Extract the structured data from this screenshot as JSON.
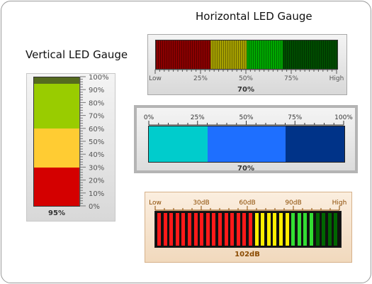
{
  "horizontal_title": "Horizontal LED Gauge",
  "vertical_title": "Vertical LED Gauge",
  "vertical_gauge": {
    "value_label": "95%",
    "value": 95,
    "ticks": [
      "0%",
      "10%",
      "20%",
      "30%",
      "40%",
      "50%",
      "60%",
      "70%",
      "80%",
      "90%",
      "100%"
    ],
    "ranges": [
      {
        "from": 0,
        "to": 30,
        "color": "#d40000"
      },
      {
        "from": 30,
        "to": 60,
        "color": "#ffcc33"
      },
      {
        "from": 60,
        "to": 95,
        "color": "#99cc00"
      },
      {
        "from": 95,
        "to": 100,
        "color": "#556b1f"
      }
    ]
  },
  "gauge1": {
    "value_label": "70%",
    "value": 70,
    "ticks": [
      "Low",
      "25%",
      "50%",
      "75%",
      "High"
    ],
    "ranges": [
      {
        "from": 0,
        "to": 30,
        "color": "#8b0000"
      },
      {
        "from": 30,
        "to": 50,
        "color": "#a6a000"
      },
      {
        "from": 50,
        "to": 70,
        "color": "#00a800"
      },
      {
        "from": 70,
        "to": 100,
        "color": "#004d00"
      }
    ]
  },
  "gauge2": {
    "value_label": "70%",
    "value": 70,
    "ticks": [
      "0%",
      "25%",
      "50%",
      "75%",
      "100%"
    ],
    "ranges": [
      {
        "from": 0,
        "to": 30,
        "color": "#00cccc"
      },
      {
        "from": 30,
        "to": 70,
        "color": "#1e6fff"
      },
      {
        "from": 70,
        "to": 100,
        "color": "#003388"
      }
    ]
  },
  "gauge3": {
    "value_label": "102dB",
    "ticks": [
      "Low",
      "30dB",
      "60dB",
      "90dB",
      "High"
    ],
    "led_count": 30,
    "ranges": [
      {
        "from": 0,
        "to": 52,
        "color": "#ff1a1a"
      },
      {
        "from": 52,
        "to": 75,
        "color": "#ffee00"
      },
      {
        "from": 75,
        "to": 87,
        "color": "#33dd33"
      },
      {
        "from": 87,
        "to": 100,
        "color": "#006600"
      }
    ]
  },
  "colors": {
    "label_brown": "#8a4a00",
    "label_dark": "#333333"
  }
}
